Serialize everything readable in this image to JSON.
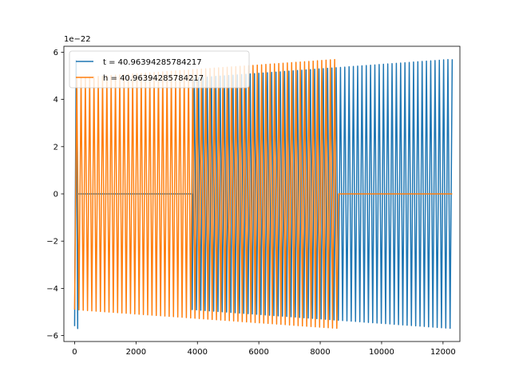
{
  "chart_data": {
    "type": "line",
    "title": "",
    "xlabel": "",
    "ylabel": "",
    "y_scale_label": "1e−22",
    "xlim": [
      -350,
      12550
    ],
    "ylim": [
      -6.25,
      6.25
    ],
    "x_ticks": [
      0,
      2000,
      4000,
      6000,
      8000,
      10000,
      12000
    ],
    "x_tick_labels": [
      "0",
      "2000",
      "4000",
      "6000",
      "8000",
      "10000",
      "12000"
    ],
    "y_ticks": [
      -6,
      -4,
      -2,
      0,
      2,
      4,
      6
    ],
    "y_tick_labels": [
      "−6",
      "−4",
      "−2",
      "0",
      "2",
      "4",
      "6"
    ],
    "grid": false,
    "legend_position": "upper-left",
    "series": [
      {
        "name": "t = 40.96394285784217",
        "color": "#1f77b4",
        "segments": [
          {
            "x_start": 0,
            "x_end": 100,
            "period": 100,
            "amp_start": 5.6,
            "amp_end": 5.7,
            "baseline_after": 0.0
          },
          {
            "x_start": 100,
            "x_end": 3830,
            "flat_value": 0.0
          },
          {
            "x_start": 3830,
            "x_end": 12300,
            "period": 140,
            "amp_start": 4.9,
            "amp_end": 5.7
          }
        ]
      },
      {
        "name": "h = 40.96394285784217",
        "color": "#ff7f0e",
        "segments": [
          {
            "x_start": 0,
            "x_end": 8600,
            "period": 140,
            "amp_start": 4.9,
            "amp_end": 5.7
          },
          {
            "x_start": 8600,
            "x_end": 12300,
            "flat_value": 0.0
          }
        ]
      }
    ]
  }
}
